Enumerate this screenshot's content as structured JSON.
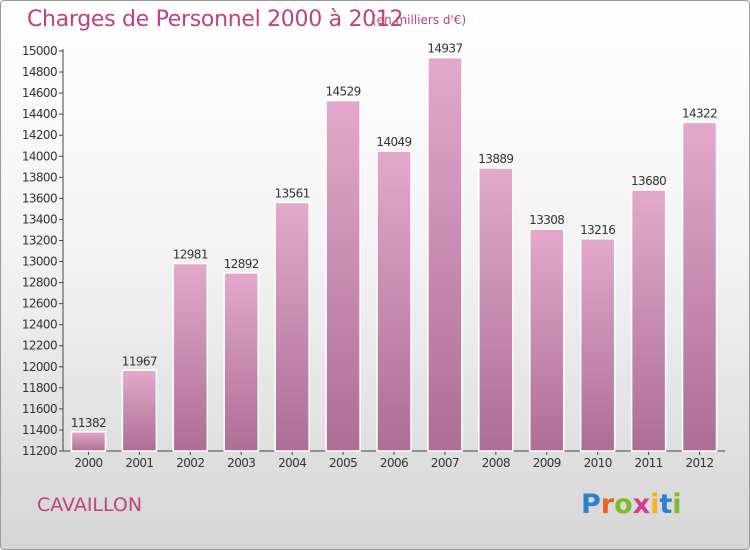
{
  "title": "Charges de Personnel 2000 à 2012",
  "subtitle": "(en milliers d'€)",
  "city": "CAVAILLON",
  "logo": {
    "text": "Proxiti",
    "letters": [
      "P",
      "r",
      "o",
      "x",
      "i",
      "t",
      "i"
    ],
    "colors": [
      "#2a7fd0",
      "#e8631f",
      "#7dbb2b",
      "#d63c8c",
      "#f3b51b",
      "#2a7fd0",
      "#7dbb2b"
    ]
  },
  "colors": {
    "accent": "#c0417e",
    "bar_top": "#e3a8cc",
    "bar_bottom": "#ad6e95"
  },
  "chart_data": {
    "type": "bar",
    "categories": [
      "2000",
      "2001",
      "2002",
      "2003",
      "2004",
      "2005",
      "2006",
      "2007",
      "2008",
      "2009",
      "2010",
      "2011",
      "2012"
    ],
    "values": [
      11382,
      11967,
      12981,
      12892,
      13561,
      14529,
      14049,
      14937,
      13889,
      13308,
      13216,
      13680,
      14322
    ],
    "ylim": [
      11200,
      15000
    ],
    "yticks": [
      11200,
      11400,
      11600,
      11800,
      12000,
      12200,
      12400,
      12600,
      12800,
      13000,
      13200,
      13400,
      13600,
      13800,
      14000,
      14200,
      14400,
      14600,
      14800,
      15000
    ],
    "grid": false,
    "data_labels": true
  }
}
